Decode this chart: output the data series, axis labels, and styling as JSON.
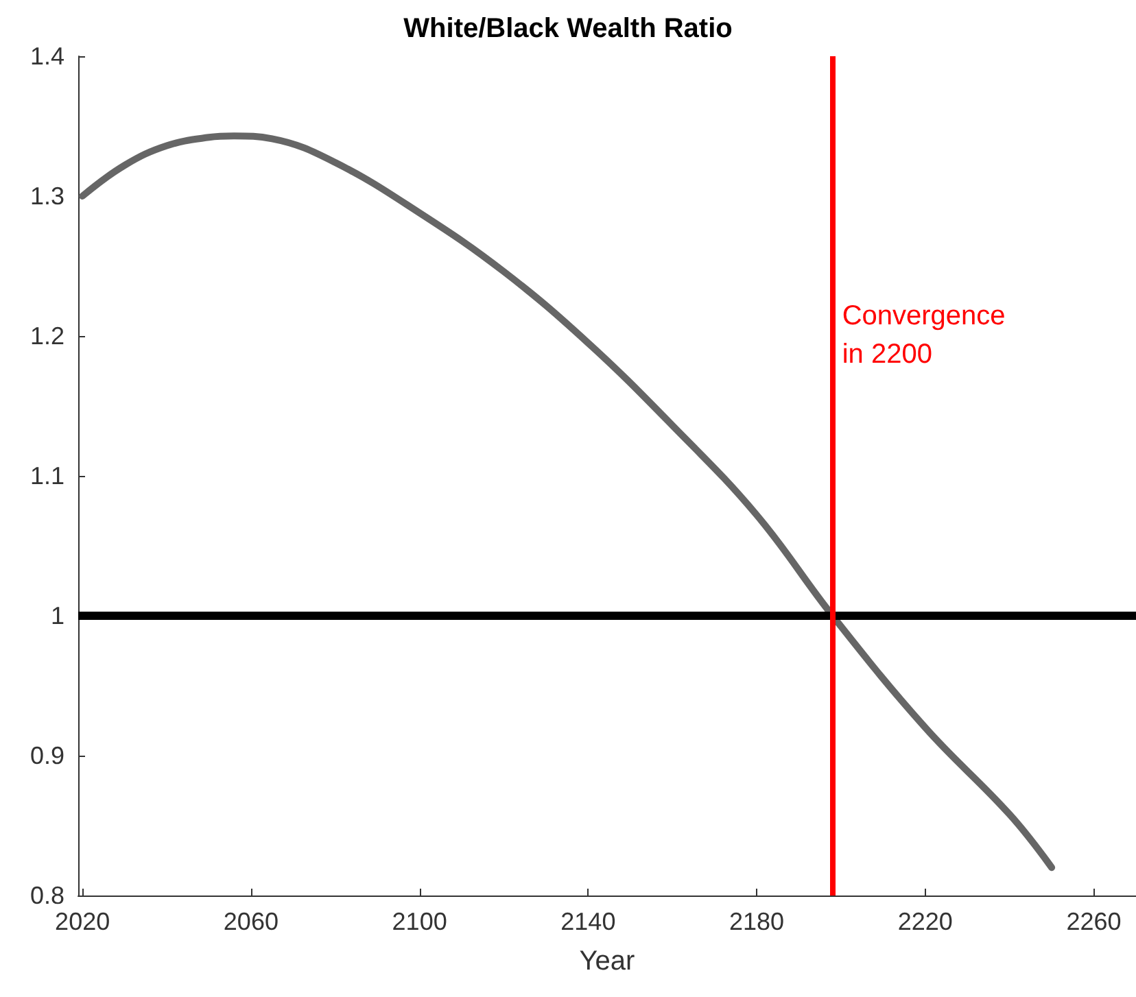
{
  "chart_data": {
    "type": "line",
    "title": "White/Black Wealth Ratio",
    "xlabel": "Year",
    "series": [
      {
        "color": "#666666",
        "x": [
          2020,
          2030,
          2040,
          2050,
          2056,
          2065,
          2080,
          2100,
          2120,
          2140,
          2160,
          2180,
          2198,
          2220,
          2240,
          2250
        ],
        "values": [
          1.3,
          1.322,
          1.336,
          1.342,
          1.343,
          1.341,
          1.324,
          1.288,
          1.246,
          1.195,
          1.136,
          1.072,
          1.0,
          0.92,
          0.858,
          0.82
        ]
      }
    ],
    "xlim": [
      2019,
      2270
    ],
    "xticks": [
      2020,
      2060,
      2100,
      2140,
      2180,
      2220,
      2260
    ],
    "ylim": [
      0.8,
      1.4
    ],
    "yticks": [
      0.8,
      0.9,
      1,
      1.1,
      1.2,
      1.3,
      1.4
    ],
    "ref_lines": [
      {
        "axis": "y",
        "value": 1,
        "color": "#000000"
      },
      {
        "axis": "x",
        "value": 2198,
        "color": "#ff0000",
        "label": "Convergence in 2200"
      }
    ],
    "grid": false,
    "marker": "none",
    "line_style": "solid"
  }
}
